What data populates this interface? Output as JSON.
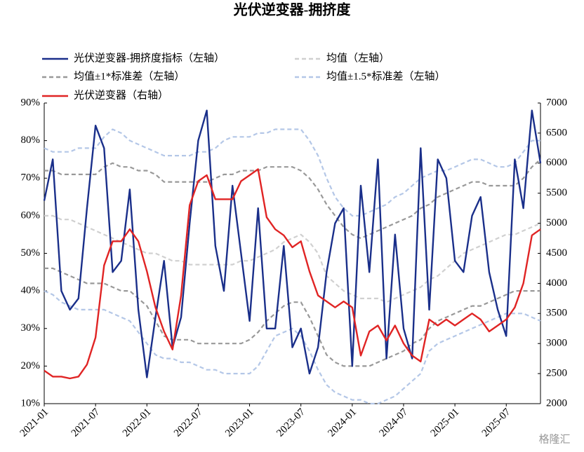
{
  "chart_data": {
    "type": "line",
    "title": "光伏逆变器-拥挤度",
    "watermark": "格隆汇",
    "categories": [
      "2021-01",
      null,
      null,
      null,
      null,
      null,
      "2021-07",
      null,
      null,
      null,
      null,
      null,
      "2022-01",
      null,
      null,
      null,
      null,
      null,
      "2022-07",
      null,
      null,
      null,
      null,
      null,
      "2023-01",
      null,
      null,
      null,
      null,
      null,
      "2023-07",
      null,
      null,
      null,
      null,
      null,
      "2024-01",
      null,
      null,
      null,
      null,
      null,
      "2024-07",
      null,
      null,
      null,
      null,
      null,
      "2025-01",
      null,
      null,
      null,
      null,
      null,
      "2025-07",
      null,
      null,
      null,
      null
    ],
    "ylim": [
      10,
      90
    ],
    "yticks": [
      {
        "value": 10,
        "label": "10%"
      },
      {
        "value": 20,
        "label": "20%"
      },
      {
        "value": 30,
        "label": "30%"
      },
      {
        "value": 40,
        "label": "40%"
      },
      {
        "value": 50,
        "label": "50%"
      },
      {
        "value": 60,
        "label": "60%"
      },
      {
        "value": 70,
        "label": "70%"
      },
      {
        "value": 80,
        "label": "80%"
      },
      {
        "value": 90,
        "label": "90%"
      }
    ],
    "y2lim": [
      2000,
      7000
    ],
    "y2ticks": [
      2000,
      2500,
      3000,
      3500,
      4000,
      4500,
      5000,
      5500,
      6000,
      6500,
      7000
    ],
    "series": [
      {
        "name": "均值±1.5*标准差（左轴）",
        "color": "#b4c7e7",
        "style": "dashed",
        "values": [
          78,
          77,
          77,
          77,
          78,
          78,
          78,
          81,
          83,
          82,
          80,
          79,
          78,
          77,
          76,
          76,
          76,
          76,
          77,
          77,
          78,
          80,
          81,
          81,
          81,
          82,
          82,
          83,
          83,
          83,
          83,
          80,
          76,
          70,
          65,
          62,
          60,
          60,
          61,
          62,
          63,
          65,
          66,
          68,
          70,
          71,
          72,
          72,
          73,
          74,
          75,
          75,
          74,
          73,
          73,
          74,
          77,
          80,
          80
        ],
        "lower": [
          40,
          39,
          37,
          36,
          35,
          35,
          35,
          35,
          34,
          33,
          32,
          29,
          26,
          23,
          22,
          22,
          21,
          21,
          20,
          19,
          19,
          18,
          18,
          18,
          18,
          20,
          24,
          28,
          29,
          30,
          28,
          24,
          19,
          15,
          13,
          12,
          11,
          11,
          10,
          10,
          11,
          12,
          14,
          16,
          18,
          24,
          26,
          27,
          28,
          29,
          30,
          31,
          32,
          33,
          34,
          34,
          34,
          33,
          32
        ]
      },
      {
        "name": "均值±1*标准差（左轴）",
        "color": "#999999",
        "style": "dashed",
        "values": [
          72,
          72,
          71,
          71,
          71,
          71,
          71,
          73,
          74,
          73,
          73,
          72,
          72,
          71,
          69,
          69,
          69,
          69,
          69,
          69,
          70,
          71,
          71,
          72,
          72,
          72,
          73,
          73,
          73,
          73,
          72,
          70,
          67,
          63,
          60,
          57,
          55,
          54,
          55,
          56,
          57,
          58,
          59,
          60,
          62,
          63,
          65,
          66,
          67,
          68,
          69,
          69,
          68,
          68,
          68,
          68,
          70,
          73,
          75
        ],
        "lower": [
          46,
          46,
          45,
          44,
          43,
          42,
          42,
          42,
          41,
          40,
          40,
          38,
          36,
          32,
          28,
          27,
          27,
          27,
          26,
          26,
          26,
          26,
          26,
          26,
          27,
          29,
          32,
          34,
          36,
          37,
          37,
          33,
          28,
          23,
          21,
          20,
          20,
          20,
          20,
          21,
          22,
          23,
          24,
          26,
          27,
          30,
          32,
          33,
          34,
          35,
          36,
          36,
          37,
          38,
          39,
          40,
          40,
          40,
          40
        ]
      },
      {
        "name": "均值（左轴）",
        "color": "#d0d0d0",
        "style": "dashed",
        "values": [
          60,
          60,
          59,
          59,
          58,
          57,
          56,
          55,
          54,
          53,
          52,
          51,
          50,
          50,
          49,
          48,
          48,
          47,
          47,
          47,
          47,
          47,
          47,
          48,
          48,
          49,
          50,
          51,
          53,
          54,
          55,
          53,
          50,
          44,
          42,
          40,
          39,
          38,
          38,
          38,
          37,
          38,
          39,
          40,
          41,
          43,
          44,
          46,
          48,
          50,
          51,
          52,
          53,
          54,
          55,
          55,
          56,
          57,
          58
        ]
      },
      {
        "name": "光伏逆变器-拥挤度指标（左轴）",
        "color": "#1a2f8a",
        "style": "solid",
        "values": [
          64,
          75,
          40,
          35,
          38,
          62,
          84,
          78,
          45,
          48,
          67,
          35,
          17,
          33,
          48,
          25,
          33,
          58,
          80,
          88,
          52,
          40,
          68,
          50,
          32,
          62,
          30,
          30,
          52,
          25,
          30,
          18,
          25,
          45,
          58,
          62,
          20,
          68,
          45,
          75,
          22,
          55,
          30,
          22,
          78,
          35,
          75,
          70,
          48,
          45,
          60,
          65,
          45,
          35,
          28,
          75,
          62,
          88,
          74
        ]
      },
      {
        "name": "光伏逆变器（右轴）",
        "color": "#e02424",
        "style": "solid",
        "axis": "y2",
        "values": [
          2550,
          2450,
          2450,
          2420,
          2450,
          2650,
          3100,
          4300,
          4700,
          4700,
          4900,
          4700,
          4200,
          3600,
          3200,
          2900,
          3800,
          5300,
          5700,
          5800,
          5400,
          5400,
          5400,
          5700,
          5800,
          5900,
          5100,
          4900,
          4800,
          4600,
          4700,
          4200,
          3800,
          3700,
          3600,
          3700,
          3600,
          2800,
          3200,
          3300,
          3050,
          3300,
          3000,
          2800,
          2700,
          3400,
          3300,
          3400,
          3300,
          3400,
          3500,
          3400,
          3200,
          3300,
          3400,
          3600,
          4000,
          4800,
          4900
        ]
      }
    ],
    "legend_order": [
      3,
      2,
      1,
      0,
      4
    ]
  }
}
